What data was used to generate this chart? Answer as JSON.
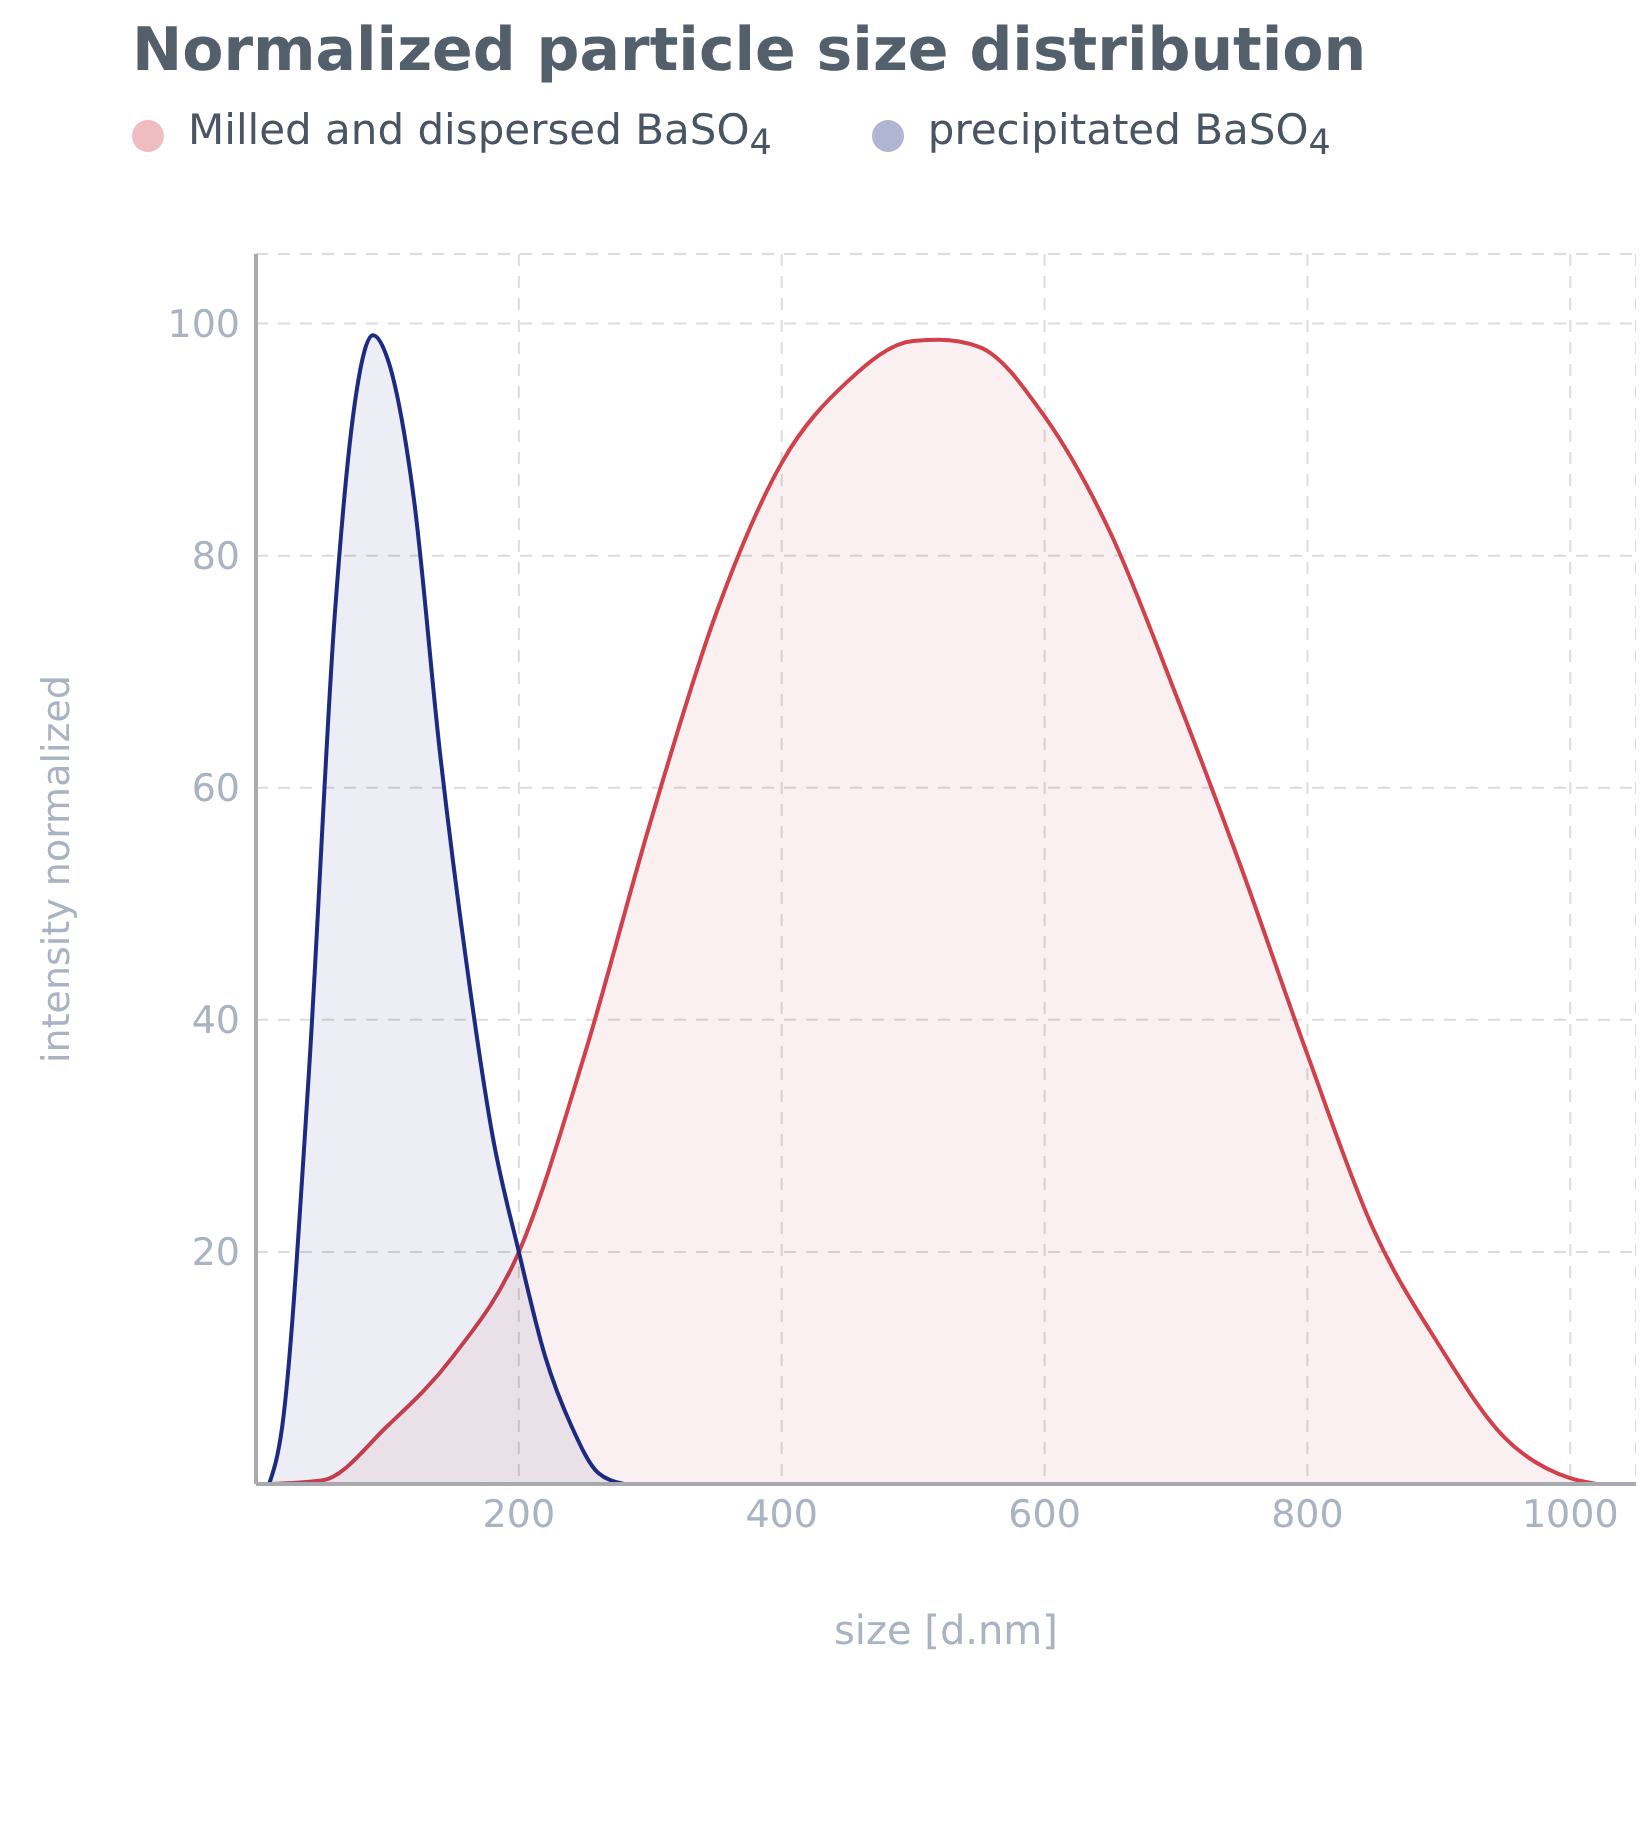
{
  "chart_data": {
    "type": "area",
    "title": "Normalized particle size distribution",
    "xlabel": "size  [d.nm]",
    "ylabel": "intensity normalized",
    "legend": "top left",
    "grid": true,
    "line_style": "solid",
    "marker": "none",
    "xlim": [
      0,
      1050
    ],
    "xticks": [
      200,
      400,
      600,
      800,
      1000
    ],
    "ylim": [
      0,
      106
    ],
    "yticks": [
      20,
      40,
      60,
      80,
      100
    ],
    "series": [
      {
        "name": "Milled and dispersed BaSO$_{4}$",
        "color": "#d0414b",
        "x": [
          10,
          50,
          100,
          150,
          200,
          250,
          300,
          350,
          400,
          450,
          500,
          520,
          550,
          600,
          650,
          700,
          750,
          800,
          850,
          900,
          950,
          1000,
          1020
        ],
        "values": [
          0,
          0.3,
          5,
          11,
          20,
          37,
          57,
          75,
          88,
          95,
          98.5,
          98.6,
          98,
          92,
          82,
          68,
          53,
          37,
          22,
          12,
          4,
          0.5,
          0
        ]
      },
      {
        "name": "precipitated BaSO$_{4}$",
        "color": "#1c2a80",
        "x": [
          10,
          20,
          40,
          60,
          75,
          89,
          100,
          120,
          140,
          160,
          180,
          200,
          220,
          240,
          260,
          280
        ],
        "values": [
          0,
          5,
          35,
          75,
          93,
          99,
          97,
          85,
          63,
          45,
          30,
          20,
          11,
          5,
          1,
          0
        ]
      }
    ]
  }
}
